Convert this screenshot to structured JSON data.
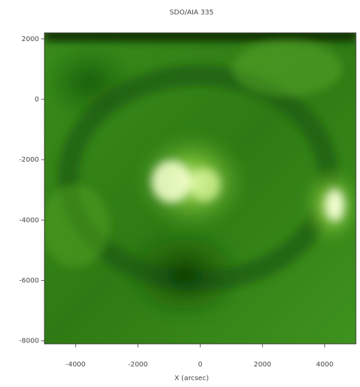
{
  "chart_data": {
    "type": "image",
    "title": "SDO/AIA 335",
    "x_label": "X (arcsec)",
    "xlim": [
      -5000,
      5000
    ],
    "xticks": [
      -4000,
      -2000,
      0,
      2000,
      4000
    ],
    "ylim": [
      -8100,
      2200
    ],
    "yticks": [
      2000,
      0,
      -2000,
      -4000,
      -6000,
      -8000
    ]
  }
}
